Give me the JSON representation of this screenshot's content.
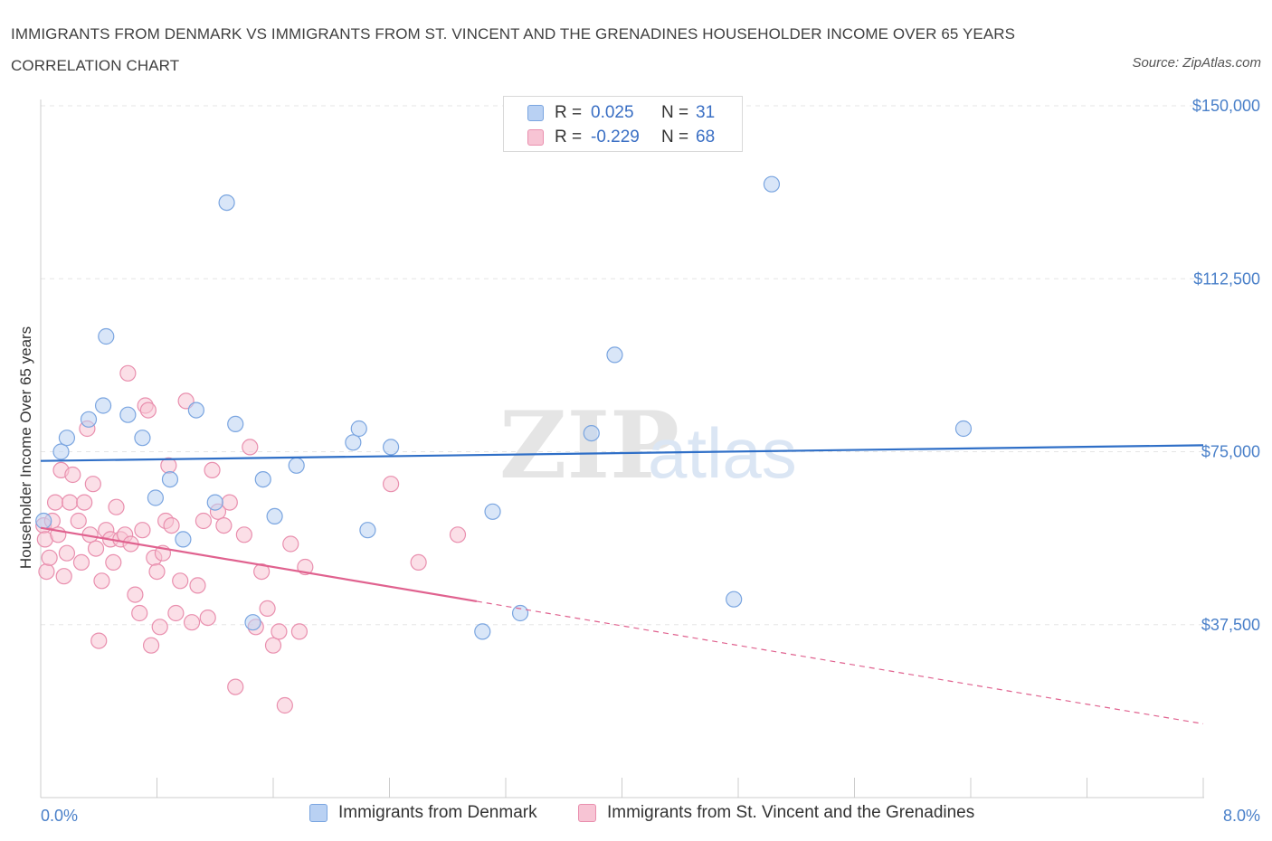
{
  "title": "IMMIGRANTS FROM DENMARK VS IMMIGRANTS FROM ST. VINCENT AND THE GRENADINES HOUSEHOLDER INCOME OVER 65 YEARS CORRELATION CHART",
  "source": "Source: ZipAtlas.com",
  "watermark": {
    "zip": "ZIP",
    "atlas": "atlas"
  },
  "colors": {
    "blue_fill": "#b9d1f3",
    "blue_stroke": "#7aa5e0",
    "blue_line": "#2f6fc7",
    "pink_fill": "#f7c4d4",
    "pink_stroke": "#e98fae",
    "pink_line": "#e0628f",
    "tick_text": "#4a80c9",
    "grid": "#e6e6e6"
  },
  "legend": {
    "rows": [
      {
        "r_label": "R =",
        "r_value": "0.025",
        "n_label": "N =",
        "n_value": "31"
      },
      {
        "r_label": "R =",
        "r_value": "-0.229",
        "n_label": "N =",
        "n_value": "68"
      }
    ]
  },
  "bottom_legend": [
    "Immigrants from Denmark",
    "Immigrants from St. Vincent and the Grenadines"
  ],
  "chart_data": {
    "type": "scatter",
    "ylabel": "Householder Income Over 65 years",
    "x_tick_labels": [
      "0.0%",
      "8.0%"
    ],
    "xlim": [
      0,
      8
    ],
    "ylim": [
      0,
      150000
    ],
    "y_ticks": [
      37500,
      75000,
      112500,
      150000
    ],
    "y_tick_labels": [
      "$37,500",
      "$75,000",
      "$112,500",
      "$150,000"
    ],
    "grid": true,
    "legend_position": "top-center",
    "series": [
      {
        "name": "Immigrants from Denmark",
        "trend": {
          "x": [
            0,
            8
          ],
          "y": [
            73000,
            76400
          ],
          "solid_until": 8
        },
        "points": [
          [
            0.02,
            60000
          ],
          [
            0.14,
            75000
          ],
          [
            0.18,
            78000
          ],
          [
            0.33,
            82000
          ],
          [
            0.45,
            100000
          ],
          [
            0.43,
            85000
          ],
          [
            0.6,
            83000
          ],
          [
            0.7,
            78000
          ],
          [
            0.79,
            65000
          ],
          [
            0.89,
            69000
          ],
          [
            0.98,
            56000
          ],
          [
            1.07,
            84000
          ],
          [
            1.2,
            64000
          ],
          [
            1.28,
            129000
          ],
          [
            1.34,
            81000
          ],
          [
            1.46,
            38000
          ],
          [
            1.53,
            69000
          ],
          [
            1.61,
            61000
          ],
          [
            1.76,
            72000
          ],
          [
            2.15,
            77000
          ],
          [
            2.19,
            80000
          ],
          [
            2.25,
            58000
          ],
          [
            2.41,
            76000
          ],
          [
            3.04,
            36000
          ],
          [
            3.11,
            62000
          ],
          [
            3.3,
            40000
          ],
          [
            3.79,
            79000
          ],
          [
            3.95,
            96000
          ],
          [
            4.77,
            43000
          ],
          [
            5.03,
            133000
          ],
          [
            6.35,
            80000
          ]
        ]
      },
      {
        "name": "Immigrants from St. Vincent and the Grenadines",
        "trend": {
          "x": [
            0,
            8
          ],
          "y": [
            58500,
            16000
          ],
          "solid_until": 3.0
        },
        "points": [
          [
            0.02,
            59000
          ],
          [
            0.03,
            56000
          ],
          [
            0.04,
            49000
          ],
          [
            0.06,
            52000
          ],
          [
            0.08,
            60000
          ],
          [
            0.1,
            64000
          ],
          [
            0.12,
            57000
          ],
          [
            0.14,
            71000
          ],
          [
            0.16,
            48000
          ],
          [
            0.18,
            53000
          ],
          [
            0.2,
            64000
          ],
          [
            0.22,
            70000
          ],
          [
            0.26,
            60000
          ],
          [
            0.28,
            51000
          ],
          [
            0.3,
            64000
          ],
          [
            0.32,
            80000
          ],
          [
            0.34,
            57000
          ],
          [
            0.36,
            68000
          ],
          [
            0.38,
            54000
          ],
          [
            0.4,
            34000
          ],
          [
            0.42,
            47000
          ],
          [
            0.45,
            58000
          ],
          [
            0.48,
            56000
          ],
          [
            0.5,
            51000
          ],
          [
            0.52,
            63000
          ],
          [
            0.55,
            56000
          ],
          [
            0.58,
            57000
          ],
          [
            0.6,
            92000
          ],
          [
            0.62,
            55000
          ],
          [
            0.65,
            44000
          ],
          [
            0.68,
            40000
          ],
          [
            0.7,
            58000
          ],
          [
            0.72,
            85000
          ],
          [
            0.74,
            84000
          ],
          [
            0.76,
            33000
          ],
          [
            0.78,
            52000
          ],
          [
            0.8,
            49000
          ],
          [
            0.82,
            37000
          ],
          [
            0.84,
            53000
          ],
          [
            0.86,
            60000
          ],
          [
            0.88,
            72000
          ],
          [
            0.9,
            59000
          ],
          [
            0.93,
            40000
          ],
          [
            0.96,
            47000
          ],
          [
            1.0,
            86000
          ],
          [
            1.04,
            38000
          ],
          [
            1.08,
            46000
          ],
          [
            1.12,
            60000
          ],
          [
            1.15,
            39000
          ],
          [
            1.18,
            71000
          ],
          [
            1.22,
            62000
          ],
          [
            1.26,
            59000
          ],
          [
            1.3,
            64000
          ],
          [
            1.34,
            24000
          ],
          [
            1.4,
            57000
          ],
          [
            1.44,
            76000
          ],
          [
            1.48,
            37000
          ],
          [
            1.52,
            49000
          ],
          [
            1.56,
            41000
          ],
          [
            1.6,
            33000
          ],
          [
            1.64,
            36000
          ],
          [
            1.68,
            20000
          ],
          [
            1.72,
            55000
          ],
          [
            1.78,
            36000
          ],
          [
            1.82,
            50000
          ],
          [
            2.41,
            68000
          ],
          [
            2.6,
            51000
          ],
          [
            2.87,
            57000
          ]
        ]
      }
    ]
  }
}
